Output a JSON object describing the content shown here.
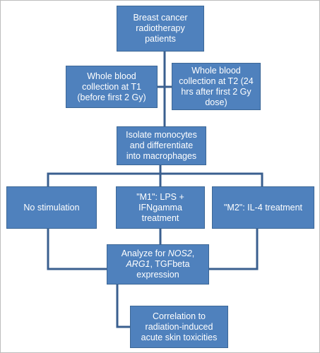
{
  "nodes": [
    {
      "label": "Breast cancer radiotherapy patients"
    },
    {
      "label": "Whole blood collection at T1 (before first 2 Gy)"
    },
    {
      "label": "Whole blood collection at T2 (24 hrs after first 2 Gy dose)"
    },
    {
      "label": "Isolate monocytes and differentiate into macrophages"
    },
    {
      "label": "No stimulation"
    },
    {
      "label": "\"M1\": LPS + IFNgamma treatment"
    },
    {
      "label": "\"M2\": IL-4 treatment"
    },
    {
      "label_parts": [
        "Analyze for ",
        "NOS2",
        ", ",
        "ARG1",
        ", TGFbeta expression"
      ]
    },
    {
      "label": "Correlation to radiation-induced acute skin toxicities"
    }
  ]
}
